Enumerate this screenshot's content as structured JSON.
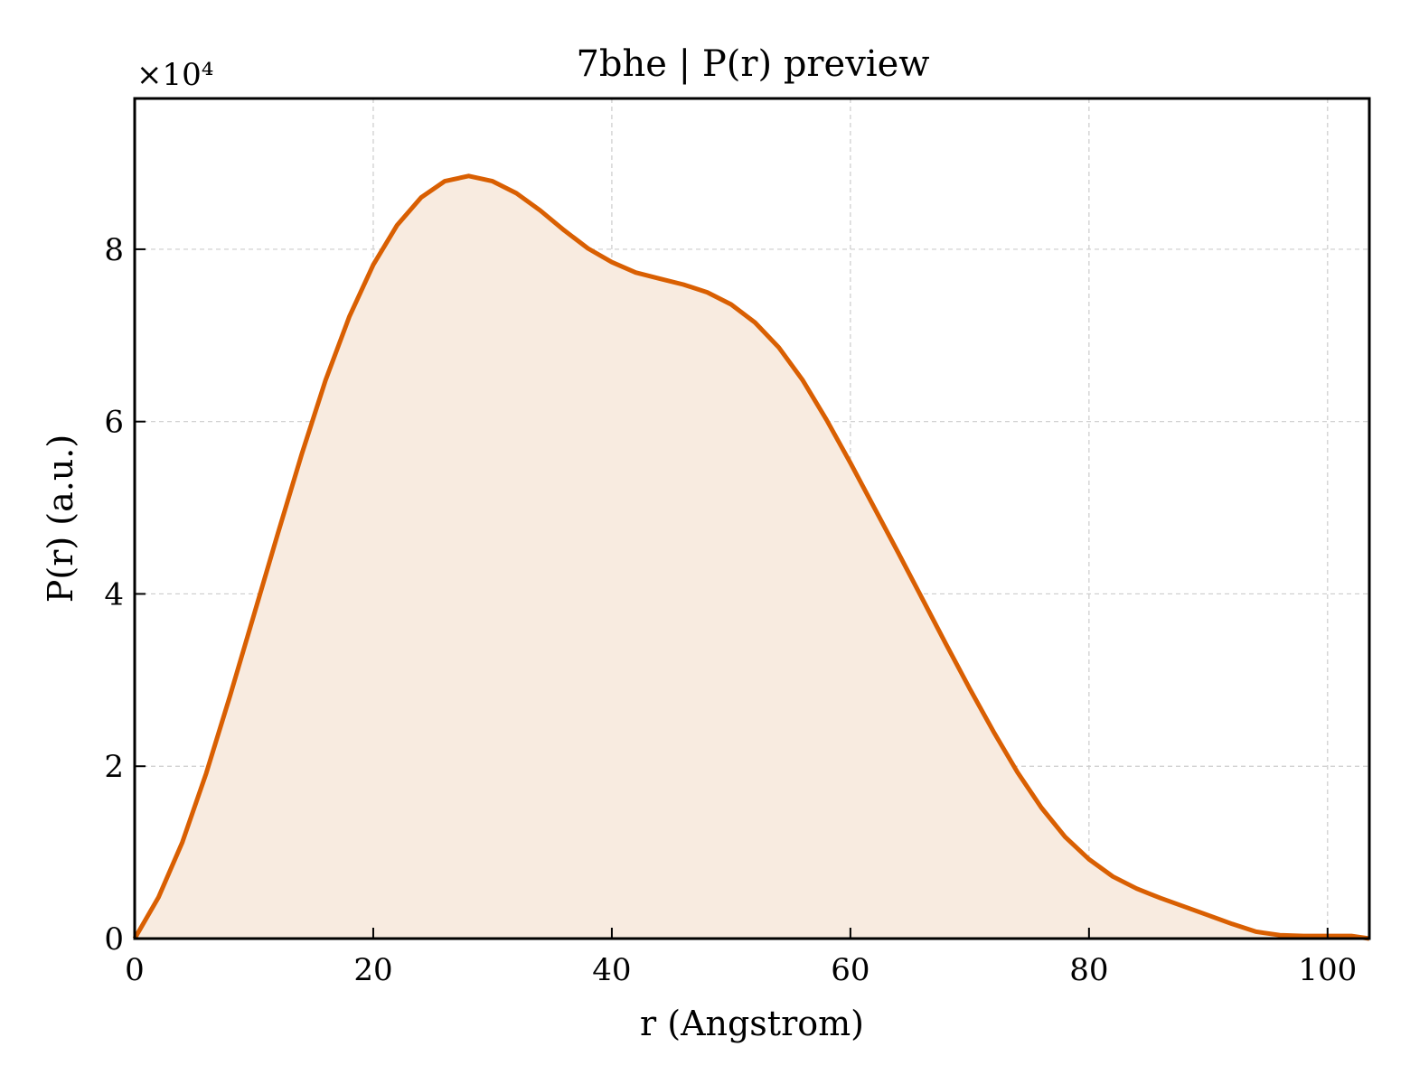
{
  "chart_data": {
    "type": "area",
    "title": "7bhe | P(r) preview",
    "xlabel": "r (Angstrom)",
    "ylabel": "P(r) (a.u.)",
    "y_multiplier": "×10⁴",
    "xlim": [
      0,
      103.5
    ],
    "ylim": [
      0,
      97500
    ],
    "xticks": [
      0,
      20,
      40,
      60,
      80,
      100
    ],
    "xtick_labels": [
      "0",
      "20",
      "40",
      "60",
      "80",
      "100"
    ],
    "yticks": [
      0,
      20000,
      40000,
      60000,
      80000
    ],
    "ytick_labels": [
      "0",
      "2",
      "4",
      "6",
      "8"
    ],
    "grid": true,
    "line_color": "#d95f02",
    "fill_color": "#f8ebe0",
    "series": [
      {
        "x": [
          0,
          2,
          4,
          6,
          8,
          10,
          12,
          14,
          16,
          18,
          20,
          22,
          24,
          26,
          28,
          30,
          32,
          34,
          36,
          38,
          40,
          42,
          44,
          46,
          48,
          50,
          52,
          54,
          56,
          58,
          60,
          62,
          64,
          66,
          68,
          70,
          72,
          74,
          76,
          78,
          80,
          82,
          84,
          86,
          88,
          90,
          92,
          94,
          96,
          98,
          100,
          102,
          103.5
        ],
        "values": [
          0,
          4800,
          11200,
          19200,
          28200,
          37600,
          47000,
          56200,
          64800,
          72200,
          78200,
          82800,
          86000,
          87900,
          88500,
          87900,
          86500,
          84500,
          82200,
          80100,
          78500,
          77300,
          76600,
          75900,
          75000,
          73600,
          71500,
          68600,
          64800,
          60200,
          55200,
          50000,
          44800,
          39500,
          34200,
          29000,
          24000,
          19300,
          15200,
          11800,
          9200,
          7200,
          5800,
          4700,
          3700,
          2700,
          1700,
          800,
          400,
          300,
          300,
          300,
          0
        ]
      }
    ]
  }
}
